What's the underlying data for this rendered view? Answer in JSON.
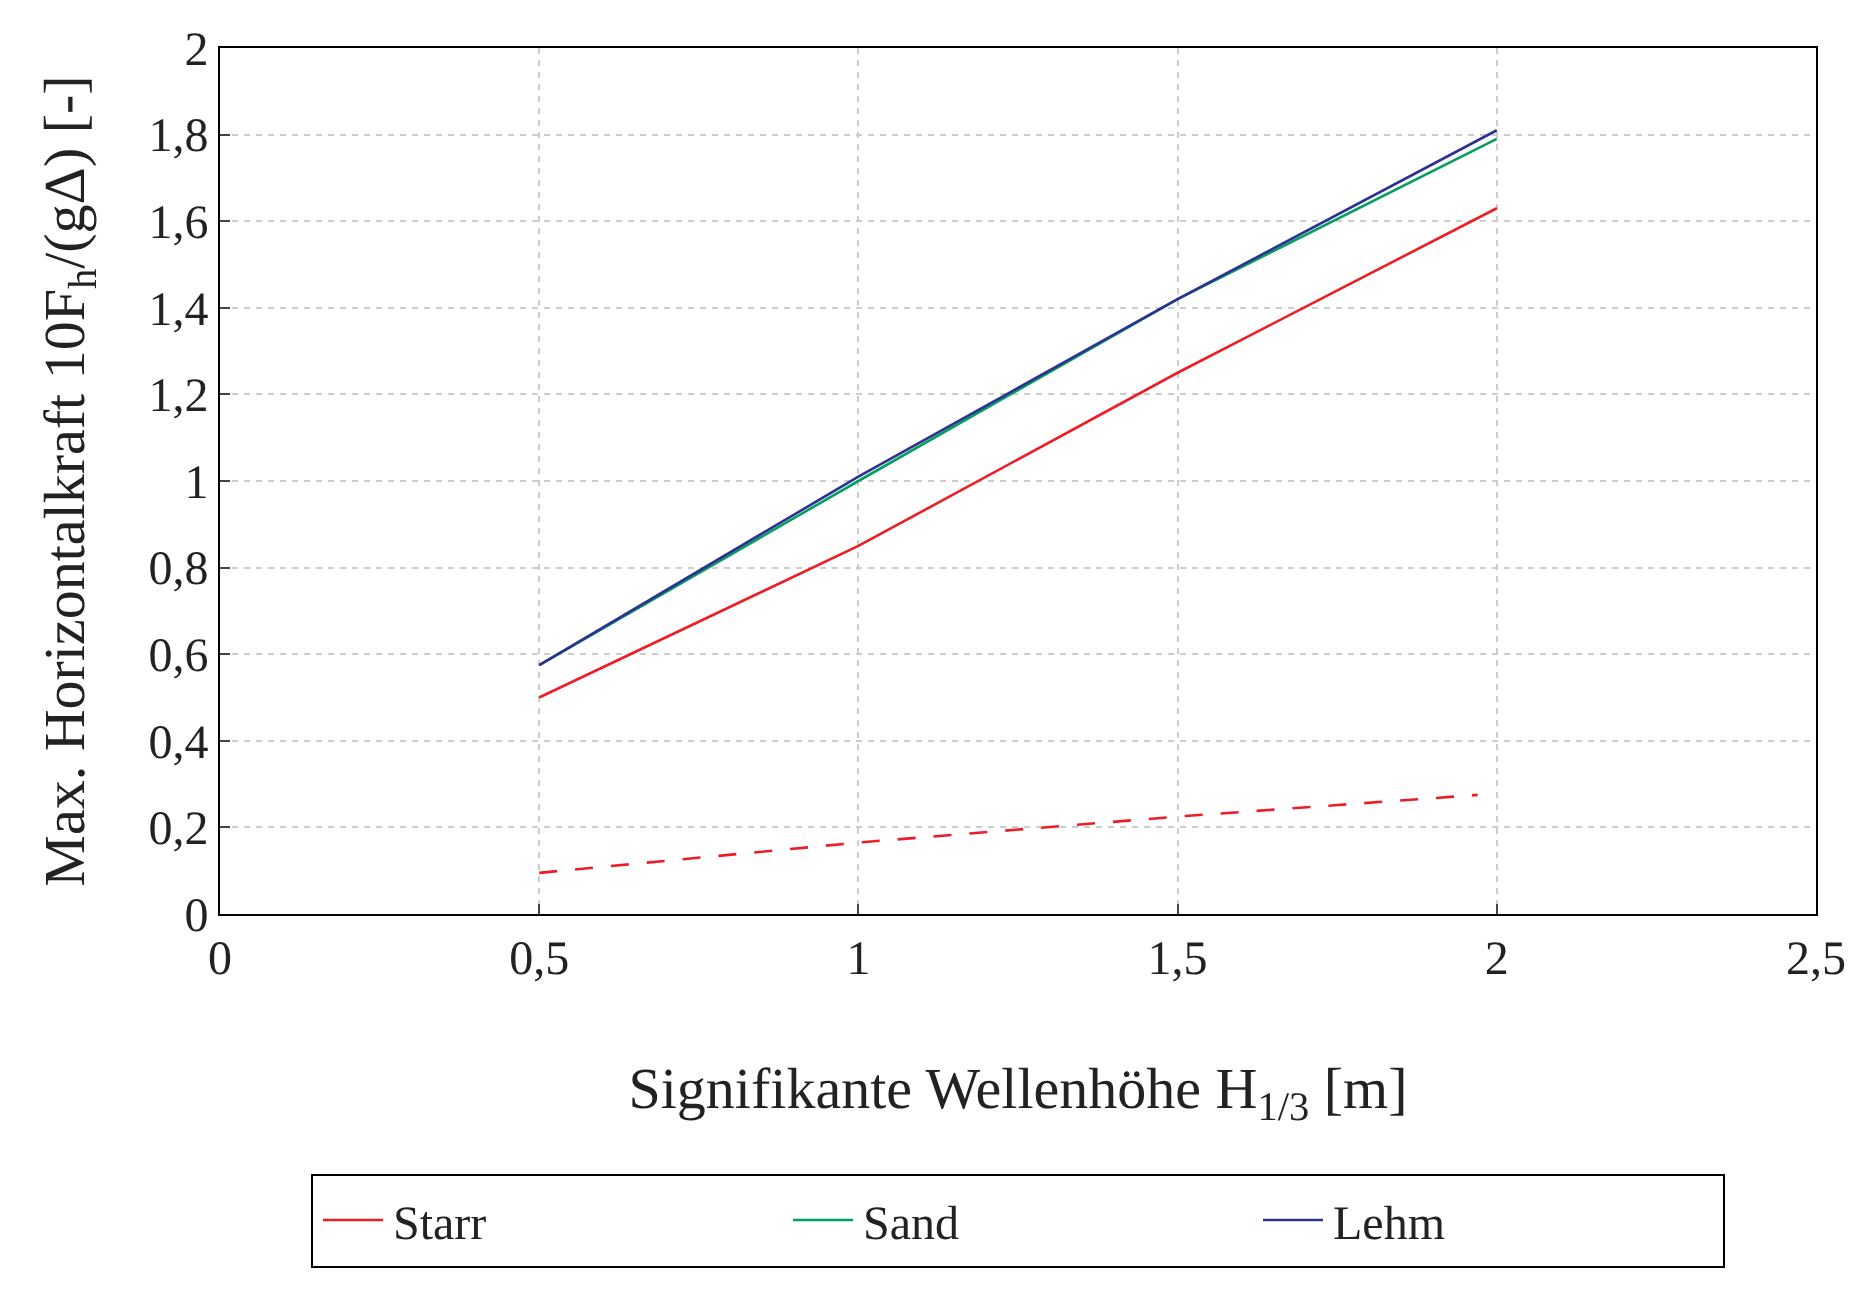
{
  "chart_data": {
    "type": "line",
    "xlabel": "Signifikante Wellenhöhe H$_{1/3}$ [m]",
    "ylabel": "Max. Horizontalkraft 10F$_{h}$/(gΔ) [-]",
    "xlim": [
      0,
      2.5
    ],
    "xticks": [
      0,
      {
        "value": 0.5,
        "label": "0,5"
      },
      1,
      {
        "value": 1.5,
        "label": "1,5"
      },
      2,
      {
        "value": 2.5,
        "label": "2,5"
      }
    ],
    "ylim": [
      0,
      2
    ],
    "yticks": [
      0,
      {
        "value": 0.2,
        "label": "0,2"
      },
      {
        "value": 0.4,
        "label": "0,4"
      },
      {
        "value": 0.6,
        "label": "0,6"
      },
      {
        "value": 0.8,
        "label": "0,8"
      },
      1,
      {
        "value": 1.2,
        "label": "1,2"
      },
      {
        "value": 1.4,
        "label": "1,4"
      },
      {
        "value": 1.6,
        "label": "1,6"
      },
      {
        "value": 1.8,
        "label": "1,8"
      },
      2
    ],
    "grid": true,
    "legend": "bottom",
    "marker": "none",
    "series": [
      {
        "color": "#ee1c25",
        "line_style": "dashed",
        "x": [
          0.5,
          1,
          1.5,
          1.97
        ],
        "values": [
          0.095,
          0.165,
          0.225,
          0.275
        ]
      },
      {
        "name": "Starr",
        "color": "#ee1c25",
        "line_style": "solid",
        "x": [
          0.5,
          1,
          1.5,
          2
        ],
        "values": [
          0.5,
          0.85,
          1.25,
          1.63
        ]
      },
      {
        "name": "Sand",
        "color": "#00a060",
        "line_style": "solid",
        "x": [
          0.5,
          1,
          1.5,
          2
        ],
        "values": [
          0.575,
          1.0,
          1.42,
          1.79
        ]
      },
      {
        "name": "Lehm",
        "color": "#2e3192",
        "line_style": "solid",
        "x": [
          0.5,
          1,
          1.5,
          2
        ],
        "values": [
          0.575,
          1.01,
          1.42,
          1.81
        ]
      }
    ]
  }
}
